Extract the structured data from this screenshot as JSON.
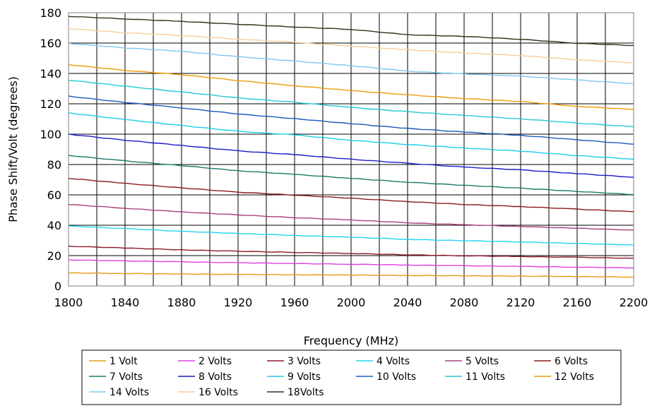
{
  "chart_data": {
    "type": "line",
    "xlabel": "Frequency (MHz)",
    "ylabel": "Phase Shift/Volt (degrees)",
    "xlim": [
      1800,
      2200
    ],
    "ylim": [
      0,
      180
    ],
    "x_ticks": [
      1800,
      1840,
      1880,
      1920,
      1960,
      2000,
      2040,
      2080,
      2120,
      2160,
      2200
    ],
    "x_tick_labels": [
      "1800",
      "1840",
      "1880",
      "1920",
      "1960",
      "2000",
      "2040",
      "2080",
      "2120",
      "2160",
      "2200"
    ],
    "y_ticks": [
      0,
      20,
      40,
      60,
      80,
      100,
      120,
      140,
      160,
      180
    ],
    "y_tick_labels": [
      "0",
      "20",
      "40",
      "60",
      "80",
      "100",
      "120",
      "140",
      "160",
      "180"
    ],
    "x_minor_step": 20,
    "grid": true,
    "legend_position": "bottom",
    "x": [
      1800,
      1840,
      1880,
      1920,
      1960,
      2000,
      2040,
      2080,
      2120,
      2160,
      2200
    ],
    "series": [
      {
        "name": "1 Volt",
        "color": "#E89A1A",
        "values": [
          8.6,
          8.2,
          7.9,
          7.6,
          7.4,
          7.2,
          6.9,
          6.7,
          6.5,
          6.2,
          5.9
        ]
      },
      {
        "name": "2 Volts",
        "color": "#E040E0",
        "values": [
          17.2,
          16.5,
          15.9,
          15.3,
          14.8,
          14.3,
          13.8,
          13.3,
          12.9,
          12.4,
          11.9
        ]
      },
      {
        "name": "3 Volts",
        "color": "#8B1A2A",
        "values": [
          26.2,
          25.0,
          23.8,
          22.9,
          22.1,
          21.4,
          20.5,
          19.9,
          19.4,
          18.9,
          18.2
        ]
      },
      {
        "name": "4 Volts",
        "color": "#22D4EE",
        "values": [
          39.5,
          37.8,
          36.0,
          34.6,
          33.3,
          32.1,
          30.7,
          29.8,
          29.0,
          28.0,
          27.0
        ]
      },
      {
        "name": "5 Volts",
        "color": "#A8407A",
        "values": [
          53.7,
          51.2,
          48.8,
          46.8,
          45.0,
          43.5,
          41.6,
          40.3,
          39.2,
          38.0,
          36.8
        ]
      },
      {
        "name": "6 Volts",
        "color": "#8B1A1A",
        "values": [
          70.9,
          67.6,
          64.6,
          61.8,
          59.8,
          57.8,
          55.6,
          53.7,
          52.3,
          50.6,
          48.9
        ]
      },
      {
        "name": "7 Volts",
        "color": "#1A7A6A",
        "values": [
          86.0,
          82.4,
          79.3,
          75.9,
          73.5,
          70.9,
          68.4,
          66.3,
          64.4,
          62.3,
          60.2
        ]
      },
      {
        "name": "8 Volts",
        "color": "#1A1AC8",
        "values": [
          100.0,
          96.0,
          92.6,
          89.0,
          86.5,
          83.5,
          80.8,
          78.3,
          76.5,
          74.0,
          71.6
        ]
      },
      {
        "name": "9 Volts",
        "color": "#1ACCE8",
        "values": [
          114.0,
          109.6,
          105.7,
          101.9,
          99.5,
          96.0,
          93.2,
          90.9,
          88.8,
          85.9,
          83.5
        ]
      },
      {
        "name": "10 Volts",
        "color": "#1A5ABE",
        "values": [
          125.0,
          120.9,
          117.3,
          113.3,
          110.2,
          106.9,
          103.8,
          101.4,
          99.2,
          96.3,
          93.4
        ]
      },
      {
        "name": "11 Volts",
        "color": "#22C8D4",
        "values": [
          135.6,
          131.6,
          127.8,
          123.9,
          121.0,
          117.6,
          114.8,
          112.3,
          110.1,
          107.3,
          104.9
        ]
      },
      {
        "name": "12 Volts",
        "color": "#EE9A0A",
        "values": [
          145.8,
          142.0,
          139.2,
          135.3,
          131.9,
          128.7,
          125.9,
          123.5,
          121.5,
          118.3,
          116.3
        ]
      },
      {
        "name": "14 Volts",
        "color": "#7EC8F0",
        "values": [
          159.8,
          156.8,
          154.6,
          151.0,
          148.2,
          145.1,
          141.5,
          139.7,
          138.2,
          135.7,
          133.2
        ]
      },
      {
        "name": "16 Volts",
        "color": "#F8CC9A",
        "values": [
          169.6,
          166.8,
          165.0,
          162.6,
          160.5,
          158.0,
          155.6,
          153.5,
          151.8,
          149.0,
          147.0
        ]
      },
      {
        "name": "18Volts",
        "color": "#283618",
        "values": [
          177.6,
          175.9,
          174.3,
          172.4,
          170.6,
          169.0,
          165.5,
          164.4,
          162.5,
          159.9,
          158.4
        ]
      }
    ]
  }
}
